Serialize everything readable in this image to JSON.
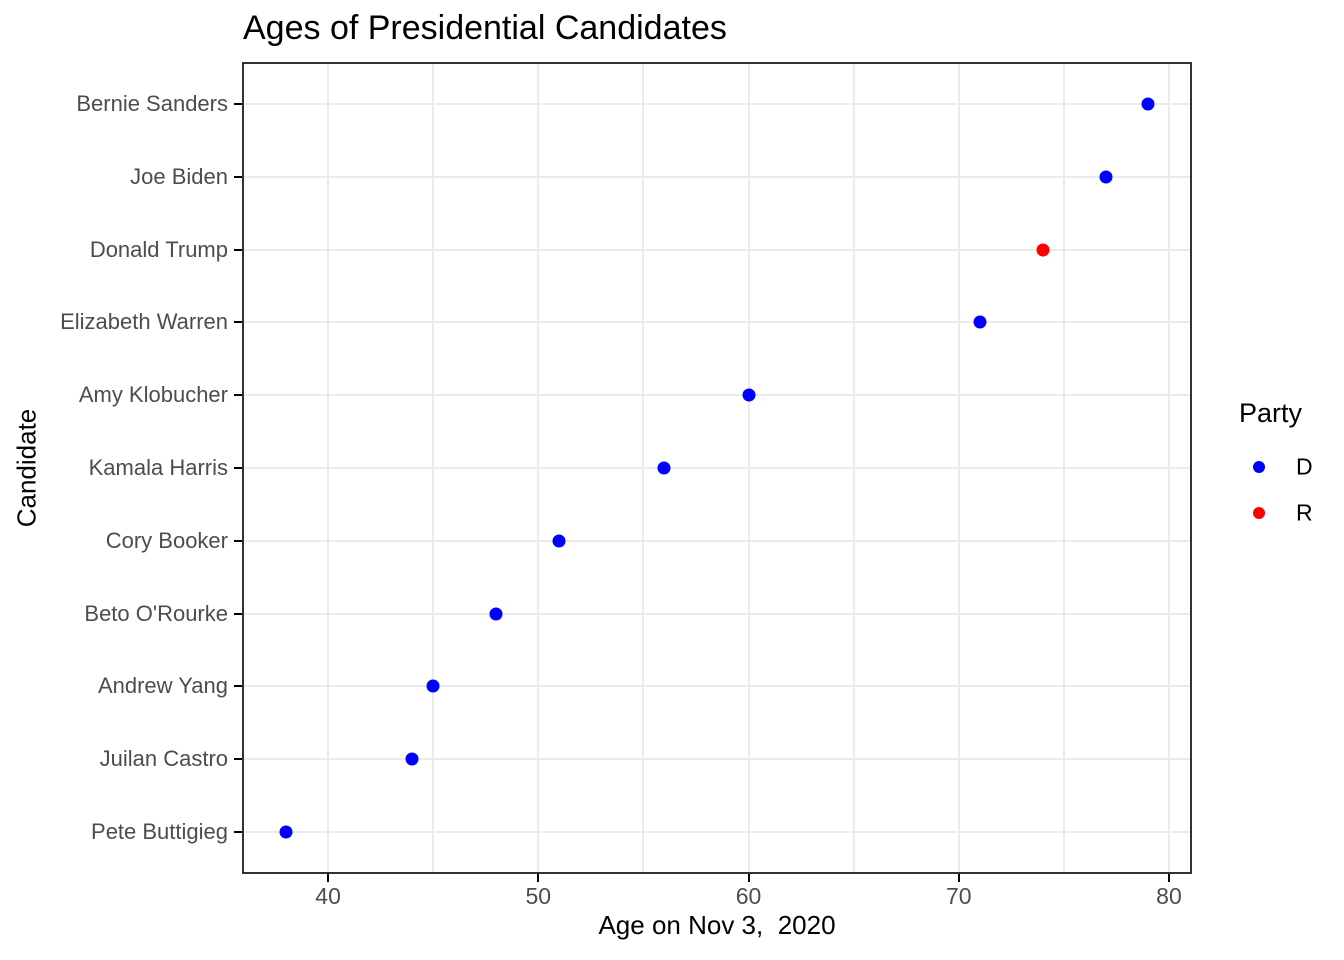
{
  "chart_data": {
    "type": "scatter",
    "title": "Ages of Presidential Candidates",
    "xlabel": "Age on Nov 3,  2020",
    "ylabel": "Candidate",
    "xlim": [
      36,
      81
    ],
    "x_major_ticks": [
      40,
      50,
      60,
      70,
      80
    ],
    "x_minor_gridlines": [
      45,
      55,
      65,
      75
    ],
    "grid": true,
    "legend": {
      "title": "Party",
      "position": "right",
      "entries": [
        {
          "label": "D",
          "color": "#0000FF"
        },
        {
          "label": "R",
          "color": "#FF0000"
        }
      ]
    },
    "party_colors": {
      "D": "#0000FF",
      "R": "#FF0000"
    },
    "categories": [
      "Bernie Sanders",
      "Joe Biden",
      "Donald Trump",
      "Elizabeth Warren",
      "Amy Klobucher",
      "Kamala Harris",
      "Cory Booker",
      "Beto O'Rourke",
      "Andrew Yang",
      "Juilan Castro",
      "Pete Buttigieg"
    ],
    "points": [
      {
        "candidate": "Bernie Sanders",
        "age": 79,
        "party": "D"
      },
      {
        "candidate": "Joe Biden",
        "age": 77,
        "party": "D"
      },
      {
        "candidate": "Donald Trump",
        "age": 74,
        "party": "R"
      },
      {
        "candidate": "Elizabeth Warren",
        "age": 71,
        "party": "D"
      },
      {
        "candidate": "Amy Klobucher",
        "age": 60,
        "party": "D"
      },
      {
        "candidate": "Kamala Harris",
        "age": 56,
        "party": "D"
      },
      {
        "candidate": "Cory Booker",
        "age": 51,
        "party": "D"
      },
      {
        "candidate": "Beto O'Rourke",
        "age": 48,
        "party": "D"
      },
      {
        "candidate": "Andrew Yang",
        "age": 45,
        "party": "D"
      },
      {
        "candidate": "Juilan Castro",
        "age": 44,
        "party": "D"
      },
      {
        "candidate": "Pete Buttigieg",
        "age": 38,
        "party": "D"
      }
    ],
    "colors": {
      "gridline": "#EBEBEB",
      "panel_border": "#333333",
      "axis_text": "#4D4D4D",
      "title_text": "#000000",
      "background": "#FFFFFF"
    }
  }
}
